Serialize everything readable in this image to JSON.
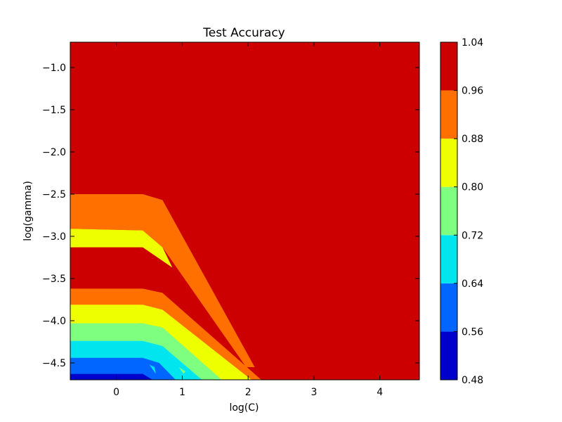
{
  "chart_data": {
    "type": "contourf",
    "title": "Test Accuracy",
    "xlabel": "log(C)",
    "ylabel": "log(gamma)",
    "xlim": [
      -0.7,
      4.6
    ],
    "ylim": [
      -4.7,
      -0.7
    ],
    "x_ticks": [
      "0",
      "1",
      "2",
      "3",
      "4"
    ],
    "y_ticks": [
      "−1.0",
      "−1.5",
      "−2.0",
      "−2.5",
      "−3.0",
      "−3.5",
      "−4.0",
      "−4.5"
    ],
    "colorbar": {
      "levels": [
        "0.48",
        "0.56",
        "0.64",
        "0.72",
        "0.80",
        "0.88",
        "0.96",
        "1.04"
      ],
      "colors": [
        "#0000cc",
        "#0066ff",
        "#00e5ee",
        "#7fff7f",
        "#eeff00",
        "#ff7000",
        "#cc0000"
      ]
    },
    "background_color": "#cc0000",
    "regions": [
      {
        "color": "#ff7000",
        "points": [
          [
            -0.7,
            -2.5
          ],
          [
            0.4,
            -2.5
          ],
          [
            0.7,
            -2.57
          ],
          [
            2.1,
            -4.55
          ],
          [
            1.97,
            -4.55
          ],
          [
            0.7,
            -3.13
          ],
          [
            0.4,
            -2.93
          ],
          [
            -0.7,
            -2.91
          ]
        ]
      },
      {
        "color": "#eeff00",
        "points": [
          [
            -0.7,
            -2.91
          ],
          [
            0.4,
            -2.93
          ],
          [
            0.7,
            -3.13
          ],
          [
            0.85,
            -3.37
          ],
          [
            0.4,
            -3.13
          ],
          [
            -0.7,
            -3.13
          ]
        ]
      },
      {
        "color": "#ff7000",
        "points": [
          [
            -0.7,
            -3.62
          ],
          [
            0.4,
            -3.62
          ],
          [
            0.7,
            -3.67
          ],
          [
            2.2,
            -4.7
          ],
          [
            -0.7,
            -4.7
          ]
        ]
      },
      {
        "color": "#eeff00",
        "points": [
          [
            -0.7,
            -3.81
          ],
          [
            0.4,
            -3.81
          ],
          [
            0.7,
            -3.87
          ],
          [
            2.05,
            -4.7
          ],
          [
            -0.7,
            -4.7
          ]
        ]
      },
      {
        "color": "#7fff7f",
        "points": [
          [
            -0.7,
            -4.03
          ],
          [
            0.4,
            -4.03
          ],
          [
            0.7,
            -4.08
          ],
          [
            1.6,
            -4.7
          ],
          [
            -0.7,
            -4.7
          ]
        ]
      },
      {
        "color": "#00e5ee",
        "points": [
          [
            -0.7,
            -4.24
          ],
          [
            0.4,
            -4.24
          ],
          [
            0.7,
            -4.3
          ],
          [
            1.3,
            -4.7
          ],
          [
            -0.7,
            -4.7
          ]
        ]
      },
      {
        "color": "#7fff7f",
        "points": [
          [
            0.95,
            -4.55
          ],
          [
            1.05,
            -4.6
          ],
          [
            1.02,
            -4.63
          ]
        ]
      },
      {
        "color": "#0066ff",
        "points": [
          [
            -0.7,
            -4.44
          ],
          [
            0.4,
            -4.44
          ],
          [
            0.65,
            -4.5
          ],
          [
            0.9,
            -4.7
          ],
          [
            -0.7,
            -4.7
          ]
        ]
      },
      {
        "color": "#00e5ee",
        "points": [
          [
            0.5,
            -4.52
          ],
          [
            0.6,
            -4.63
          ],
          [
            0.58,
            -4.55
          ]
        ]
      },
      {
        "color": "#0000cc",
        "points": [
          [
            -0.7,
            -4.63
          ],
          [
            0.4,
            -4.63
          ],
          [
            0.55,
            -4.7
          ],
          [
            -0.7,
            -4.7
          ]
        ]
      }
    ]
  }
}
